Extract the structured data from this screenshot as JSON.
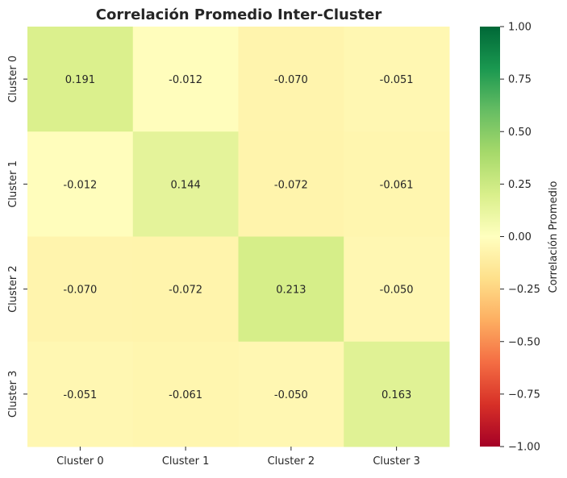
{
  "chart_data": {
    "type": "heatmap",
    "title": "Correlación Promedio Inter-Cluster",
    "x_categories": [
      "Cluster 0",
      "Cluster 1",
      "Cluster 2",
      "Cluster 3"
    ],
    "y_categories": [
      "Cluster 0",
      "Cluster 1",
      "Cluster 2",
      "Cluster 3"
    ],
    "values": [
      [
        0.191,
        -0.012,
        -0.07,
        -0.051
      ],
      [
        -0.012,
        0.144,
        -0.072,
        -0.061
      ],
      [
        -0.07,
        -0.072,
        0.213,
        -0.05
      ],
      [
        -0.051,
        -0.061,
        -0.05,
        0.163
      ]
    ],
    "annotations": [
      [
        "0.191",
        "-0.012",
        "-0.070",
        "-0.051"
      ],
      [
        "-0.012",
        "0.144",
        "-0.072",
        "-0.061"
      ],
      [
        "-0.070",
        "-0.072",
        "0.213",
        "-0.050"
      ],
      [
        "-0.051",
        "-0.061",
        "-0.050",
        "0.163"
      ]
    ],
    "colormap": "RdYlGn",
    "vmin": -1.0,
    "vmax": 1.0,
    "colorbar": {
      "label": "Correlación Promedio",
      "ticks": [
        1.0,
        0.75,
        0.5,
        0.25,
        0.0,
        -0.25,
        -0.5,
        -0.75,
        -1.0
      ],
      "tick_labels": [
        "1.00",
        "0.75",
        "0.50",
        "0.25",
        "0.00",
        "−0.25",
        "−0.50",
        "−0.75",
        "−1.00"
      ],
      "placement": "right"
    },
    "grid": false
  }
}
